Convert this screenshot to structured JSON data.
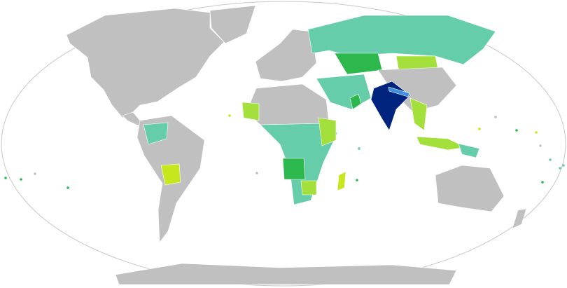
{
  "map": {
    "projection": "Robinson",
    "colors": {
      "ocean": "#ffffff",
      "outline": "#c8c8c8",
      "no_data": "#c0c0c0",
      "teal": "#66cdaa",
      "green": "#2db84d",
      "light_green": "#a4e03c",
      "yellow_green": "#c6e61e",
      "navy": "#00247d",
      "blue": "#3d8fe0"
    }
  }
}
